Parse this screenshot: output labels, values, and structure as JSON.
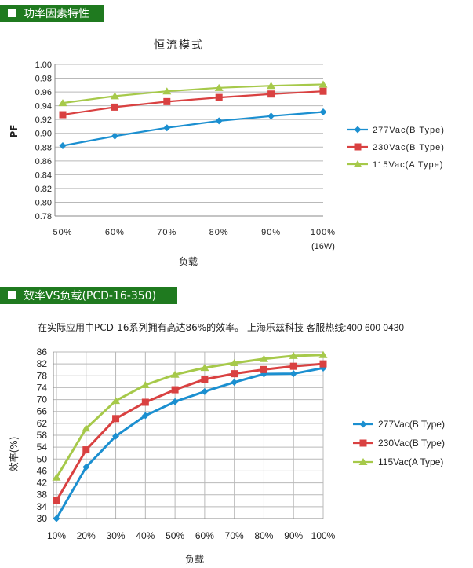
{
  "sections": [
    {
      "label": "功率因素特性"
    },
    {
      "label": "效率VS负载(PCD-16-350)"
    }
  ],
  "note": {
    "text": "在实际应用中PCD-16系列拥有高达86%的效率。",
    "hotline": "上海乐兹科技 客服热线:400 600 0430"
  },
  "chart_data": [
    {
      "type": "line",
      "title": "恒流模式",
      "xlabel": "负载",
      "ylabel": "PF",
      "categories": [
        "50%",
        "60%",
        "70%",
        "80%",
        "90%",
        "100%"
      ],
      "x_note": "(16W)",
      "ylim": [
        0.78,
        1.0
      ],
      "yticks": [
        "1.00",
        "0.98",
        "0.96",
        "0.94",
        "0.92",
        "0.90",
        "0.88",
        "0.86",
        "0.84",
        "0.82",
        "0.80",
        "0.78"
      ],
      "grid": true,
      "legend": "right",
      "series": [
        {
          "name": "277Vac(B Type)",
          "color": "#1b8fd0",
          "marker": "diamond",
          "values": [
            0.882,
            0.896,
            0.908,
            0.918,
            0.925,
            0.931
          ]
        },
        {
          "name": "230Vac(B Type)",
          "color": "#d94141",
          "marker": "square",
          "values": [
            0.927,
            0.938,
            0.946,
            0.952,
            0.957,
            0.961
          ]
        },
        {
          "name": "115Vac(A Type)",
          "color": "#a6c94a",
          "marker": "triangle",
          "values": [
            0.944,
            0.954,
            0.961,
            0.966,
            0.969,
            0.971
          ]
        }
      ]
    },
    {
      "type": "line",
      "title": "",
      "xlabel": "负载",
      "ylabel": "效率(%)",
      "categories": [
        "10%",
        "20%",
        "30%",
        "40%",
        "50%",
        "60%",
        "70%",
        "80%",
        "90%",
        "100%"
      ],
      "ylim": [
        30,
        86
      ],
      "yticks": [
        "86",
        "82",
        "78",
        "74",
        "70",
        "66",
        "62",
        "58",
        "54",
        "50",
        "46",
        "42",
        "38",
        "34",
        "30"
      ],
      "grid": true,
      "legend": "right",
      "series": [
        {
          "name": "277Vac(B Type)",
          "color": "#1b8fd0",
          "marker": "diamond",
          "values": [
            30,
            47.3,
            57.7,
            64.6,
            69.3,
            72.7,
            75.8,
            78.6,
            78.7,
            80.6
          ]
        },
        {
          "name": "230Vac(B Type)",
          "color": "#d94141",
          "marker": "square",
          "values": [
            36,
            53.1,
            63.6,
            69.1,
            73.3,
            76.8,
            78.7,
            80.1,
            81.2,
            82.0
          ]
        },
        {
          "name": "115Vac(A Type)",
          "color": "#a6c94a",
          "marker": "triangle",
          "values": [
            43.8,
            60.3,
            69.6,
            74.9,
            78.4,
            80.7,
            82.3,
            83.7,
            84.7,
            85.0
          ]
        }
      ]
    }
  ]
}
